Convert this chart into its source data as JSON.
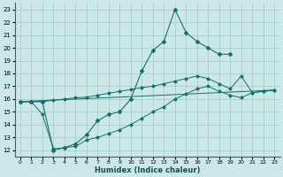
{
  "xlabel": "Humidex (Indice chaleur)",
  "xlim": [
    -0.5,
    23.5
  ],
  "ylim": [
    11.5,
    23.5
  ],
  "xticks": [
    0,
    1,
    2,
    3,
    4,
    5,
    6,
    7,
    8,
    9,
    10,
    11,
    12,
    13,
    14,
    15,
    16,
    17,
    18,
    19,
    20,
    21,
    22,
    23
  ],
  "yticks": [
    12,
    13,
    14,
    15,
    16,
    17,
    18,
    19,
    20,
    21,
    22,
    23
  ],
  "bg_color": "#cce8e6",
  "grid_color": "#a0cbc8",
  "line_color": "#1a6e6a",
  "line1_x": [
    0,
    1,
    2,
    3,
    4,
    5,
    6,
    7,
    8,
    9,
    10,
    11,
    12,
    13,
    14,
    15,
    16,
    17,
    18,
    19
  ],
  "line1_y": [
    15.8,
    15.8,
    15.8,
    12.0,
    12.2,
    12.5,
    13.2,
    14.3,
    14.8,
    15.0,
    16.0,
    18.2,
    19.8,
    20.5,
    23.0,
    21.2,
    20.5,
    20.0,
    19.5,
    19.5
  ],
  "line2_x": [
    0,
    1,
    2,
    3,
    4,
    5,
    6,
    7,
    8,
    9,
    10,
    11,
    12,
    13,
    14,
    15,
    16,
    17,
    18,
    19,
    20,
    21,
    22,
    23
  ],
  "line2_y": [
    15.8,
    15.8,
    15.8,
    15.9,
    16.0,
    16.1,
    16.15,
    16.3,
    16.45,
    16.6,
    16.75,
    16.9,
    17.0,
    17.2,
    17.4,
    17.6,
    17.8,
    17.6,
    17.2,
    16.8,
    17.8,
    16.5,
    16.6,
    16.7
  ],
  "line3_x": [
    0,
    1,
    2,
    3,
    4,
    5,
    6,
    7,
    8,
    9,
    10,
    11,
    12,
    13,
    14,
    15,
    16,
    17,
    18,
    19,
    20,
    21,
    22,
    23
  ],
  "line3_y": [
    15.8,
    15.8,
    14.8,
    12.1,
    12.2,
    12.3,
    12.8,
    13.0,
    13.3,
    13.6,
    14.0,
    14.5,
    15.0,
    15.4,
    16.0,
    16.4,
    16.8,
    17.0,
    16.6,
    16.3,
    16.1,
    16.5,
    16.6,
    16.7
  ],
  "line4_x": [
    0,
    23
  ],
  "line4_y": [
    15.8,
    16.7
  ]
}
